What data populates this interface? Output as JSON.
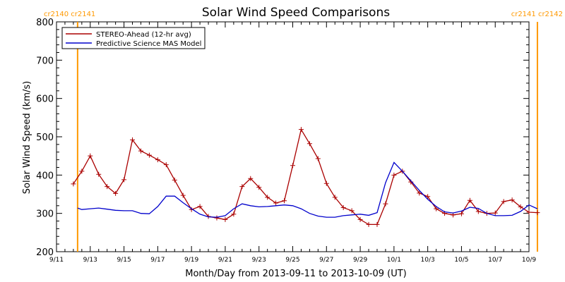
{
  "chart_data": {
    "type": "line",
    "title": "Solar Wind Speed Comparisons",
    "xlabel": "Month/Day from 2013-09-11 to 2013-10-09 (UT)",
    "ylabel": "Solar Wind Speed (km/s)",
    "xlim": [
      "2013-09-11",
      "2013-10-09"
    ],
    "ylim": [
      200,
      800
    ],
    "grid": false,
    "legend_position": "top-left",
    "y_ticks": [
      200,
      300,
      400,
      500,
      600,
      700,
      800
    ],
    "x_ticks": [
      {
        "date": "2013-09-11",
        "label": "9/11"
      },
      {
        "date": "2013-09-13",
        "label": "9/13"
      },
      {
        "date": "2013-09-15",
        "label": "9/15"
      },
      {
        "date": "2013-09-17",
        "label": "9/17"
      },
      {
        "date": "2013-09-19",
        "label": "9/19"
      },
      {
        "date": "2013-09-21",
        "label": "9/21"
      },
      {
        "date": "2013-09-23",
        "label": "9/23"
      },
      {
        "date": "2013-09-25",
        "label": "9/25"
      },
      {
        "date": "2013-09-27",
        "label": "9/27"
      },
      {
        "date": "2013-09-29",
        "label": "9/29"
      },
      {
        "date": "2013-10-01",
        "label": "10/1"
      },
      {
        "date": "2013-10-03",
        "label": "10/3"
      },
      {
        "date": "2013-10-05",
        "label": "10/5"
      },
      {
        "date": "2013-10-07",
        "label": "10/7"
      },
      {
        "date": "2013-10-09",
        "label": "10/9"
      }
    ],
    "carrington_markers": [
      {
        "date": "2013-09-12 06:00",
        "labels": [
          "cr2140",
          "cr2141"
        ],
        "label_side": "left",
        "color": "#ff9900"
      },
      {
        "date": "2013-10-09 12:00",
        "labels": [
          "cr2141",
          "cr2142"
        ],
        "label_side": "right",
        "color": "#ff9900"
      }
    ],
    "series": [
      {
        "name": "STEREO-Ahead (12-hr avg)",
        "color": "#aa0000",
        "marker": "plus",
        "x": [
          "2013-09-12 00:00",
          "2013-09-12 12:00",
          "2013-09-13 00:00",
          "2013-09-13 12:00",
          "2013-09-14 00:00",
          "2013-09-14 12:00",
          "2013-09-15 00:00",
          "2013-09-15 12:00",
          "2013-09-16 00:00",
          "2013-09-16 12:00",
          "2013-09-17 00:00",
          "2013-09-17 12:00",
          "2013-09-18 00:00",
          "2013-09-18 12:00",
          "2013-09-19 00:00",
          "2013-09-19 12:00",
          "2013-09-20 00:00",
          "2013-09-20 12:00",
          "2013-09-21 00:00",
          "2013-09-21 12:00",
          "2013-09-22 00:00",
          "2013-09-22 12:00",
          "2013-09-23 00:00",
          "2013-09-23 12:00",
          "2013-09-24 00:00",
          "2013-09-24 12:00",
          "2013-09-25 00:00",
          "2013-09-25 12:00",
          "2013-09-26 00:00",
          "2013-09-26 12:00",
          "2013-09-27 00:00",
          "2013-09-27 12:00",
          "2013-09-28 00:00",
          "2013-09-28 12:00",
          "2013-09-29 00:00",
          "2013-09-29 12:00",
          "2013-09-30 00:00",
          "2013-09-30 12:00",
          "2013-10-01 00:00",
          "2013-10-01 12:00",
          "2013-10-02 00:00",
          "2013-10-02 12:00",
          "2013-10-03 00:00",
          "2013-10-03 12:00",
          "2013-10-04 00:00",
          "2013-10-04 12:00",
          "2013-10-05 00:00",
          "2013-10-05 12:00",
          "2013-10-06 00:00",
          "2013-10-06 12:00",
          "2013-10-07 00:00",
          "2013-10-07 12:00",
          "2013-10-08 00:00",
          "2013-10-08 12:00",
          "2013-10-09 00:00",
          "2013-10-09 12:00"
        ],
        "y": [
          377,
          410,
          450,
          402,
          370,
          352,
          388,
          492,
          463,
          452,
          440,
          427,
          387,
          347,
          310,
          318,
          292,
          288,
          284,
          298,
          370,
          391,
          368,
          342,
          327,
          333,
          425,
          519,
          482,
          443,
          378,
          342,
          315,
          307,
          284,
          271,
          271,
          325,
          400,
          410,
          382,
          353,
          344,
          312,
          300,
          296,
          299,
          334,
          305,
          300,
          301,
          331,
          335,
          317,
          303,
          302
        ]
      },
      {
        "name": "Predictive Science MAS Model",
        "color": "#0000cc",
        "marker": "none",
        "x": [
          "2013-09-12 06:00",
          "2013-09-12 12:00",
          "2013-09-13 00:00",
          "2013-09-13 12:00",
          "2013-09-14 00:00",
          "2013-09-14 12:00",
          "2013-09-15 00:00",
          "2013-09-15 12:00",
          "2013-09-16 00:00",
          "2013-09-16 12:00",
          "2013-09-17 00:00",
          "2013-09-17 12:00",
          "2013-09-18 00:00",
          "2013-09-18 12:00",
          "2013-09-19 00:00",
          "2013-09-19 12:00",
          "2013-09-20 00:00",
          "2013-09-20 12:00",
          "2013-09-21 00:00",
          "2013-09-21 12:00",
          "2013-09-22 00:00",
          "2013-09-22 12:00",
          "2013-09-23 00:00",
          "2013-09-23 12:00",
          "2013-09-24 00:00",
          "2013-09-24 12:00",
          "2013-09-25 00:00",
          "2013-09-25 12:00",
          "2013-09-26 00:00",
          "2013-09-26 12:00",
          "2013-09-27 00:00",
          "2013-09-27 12:00",
          "2013-09-28 00:00",
          "2013-09-28 12:00",
          "2013-09-29 00:00",
          "2013-09-29 12:00",
          "2013-09-30 00:00",
          "2013-09-30 12:00",
          "2013-10-01 00:00",
          "2013-10-01 12:00",
          "2013-10-02 00:00",
          "2013-10-02 12:00",
          "2013-10-03 00:00",
          "2013-10-03 12:00",
          "2013-10-04 00:00",
          "2013-10-04 12:00",
          "2013-10-05 00:00",
          "2013-10-05 12:00",
          "2013-10-06 00:00",
          "2013-10-06 12:00",
          "2013-10-07 00:00",
          "2013-10-07 12:00",
          "2013-10-08 00:00",
          "2013-10-08 12:00",
          "2013-10-09 00:00",
          "2013-10-09 12:00"
        ],
        "y": [
          314,
          310,
          312,
          314,
          311,
          308,
          307,
          307,
          300,
          299,
          318,
          345,
          345,
          328,
          312,
          298,
          291,
          290,
          294,
          312,
          325,
          320,
          317,
          318,
          320,
          322,
          320,
          312,
          300,
          293,
          290,
          290,
          294,
          296,
          298,
          295,
          302,
          380,
          433,
          410,
          385,
          360,
          337,
          318,
          304,
          301,
          306,
          316,
          313,
          300,
          294,
          294,
          295,
          305,
          322,
          312
        ]
      }
    ]
  }
}
